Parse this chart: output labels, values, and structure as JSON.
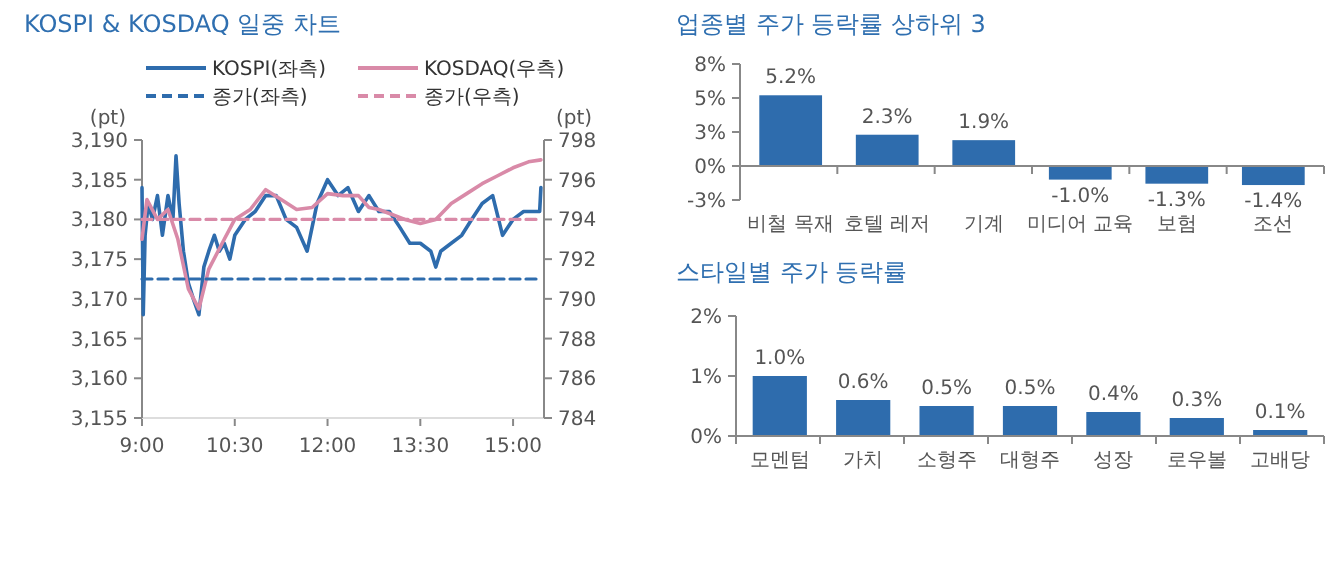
{
  "chart_data": [
    {
      "type": "line",
      "title": "KOSPI & KOSDAQ 일중 차트",
      "ylabel": "(pt)",
      "y2label": "(pt)",
      "legend": "top",
      "xlim": [
        9,
        15.5
      ],
      "xticks": [
        {
          "value": 9,
          "label": "9:00"
        },
        {
          "value": 10.5,
          "label": "10:30"
        },
        {
          "value": 12,
          "label": "12:00"
        },
        {
          "value": 13.5,
          "label": "13:30"
        },
        {
          "value": 15,
          "label": "15:00"
        }
      ],
      "ylim": [
        3155,
        3190
      ],
      "yticks": [
        {
          "value": 3155,
          "label": "3,155"
        },
        {
          "value": 3160,
          "label": "3,160"
        },
        {
          "value": 3165,
          "label": "3,165"
        },
        {
          "value": 3170,
          "label": "3,170"
        },
        {
          "value": 3175,
          "label": "3,175"
        },
        {
          "value": 3180,
          "label": "3,180"
        },
        {
          "value": 3185,
          "label": "3,185"
        },
        {
          "value": 3190,
          "label": "3,190"
        }
      ],
      "y2lim": [
        784,
        798
      ],
      "y2ticks": [
        784,
        786,
        788,
        790,
        792,
        794,
        796,
        798
      ],
      "series": [
        {
          "name": "KOSPI(좌측)",
          "color": "#2e6cad",
          "line_style": "solid",
          "x": [
            9,
            9.02,
            9.05,
            9.1,
            9.17,
            9.25,
            9.33,
            9.42,
            9.5,
            9.55,
            9.6,
            9.67,
            9.75,
            9.83,
            9.92,
            10,
            10.08,
            10.17,
            10.25,
            10.33,
            10.42,
            10.5,
            10.67,
            10.83,
            11,
            11.17,
            11.33,
            11.5,
            11.67,
            11.83,
            12,
            12.17,
            12.33,
            12.5,
            12.67,
            12.83,
            13,
            13.17,
            13.33,
            13.5,
            13.67,
            13.75,
            13.83,
            14,
            14.17,
            14.33,
            14.5,
            14.67,
            14.83,
            15,
            15.17,
            15.33,
            15.43,
            15.45
          ],
          "values": [
            3184,
            3168,
            3178,
            3182,
            3180,
            3183,
            3178,
            3183,
            3180,
            3188,
            3182,
            3176,
            3172,
            3170,
            3168,
            3174,
            3176,
            3178,
            3176,
            3177,
            3175,
            3178,
            3180,
            3181,
            3183,
            3183,
            3180,
            3179,
            3176,
            3182,
            3185,
            3183,
            3184,
            3181,
            3183,
            3181,
            3181,
            3179,
            3177,
            3177,
            3176,
            3174,
            3176,
            3177,
            3178,
            3180,
            3182,
            3183,
            3178,
            3180,
            3181,
            3181,
            3181,
            3184
          ]
        },
        {
          "name": "KOSDAQ(우측)",
          "color": "#d98aa8",
          "line_style": "solid",
          "axis": "y2",
          "x": [
            9,
            9.08,
            9.25,
            9.42,
            9.58,
            9.75,
            9.92,
            10.08,
            10.33,
            10.5,
            10.75,
            11,
            11.25,
            11.5,
            11.75,
            12,
            12.25,
            12.5,
            12.67,
            12.83,
            13,
            13.25,
            13.5,
            13.75,
            14,
            14.25,
            14.5,
            14.75,
            15,
            15.25,
            15.45
          ],
          "values": [
            793,
            795,
            794,
            794.5,
            793,
            790.5,
            789.5,
            791.5,
            793,
            794,
            794.5,
            795.5,
            795,
            794.5,
            794.6,
            795.3,
            795.2,
            795.2,
            794.6,
            794.5,
            794.3,
            794,
            793.8,
            794,
            794.8,
            795.3,
            795.8,
            796.2,
            796.6,
            796.9,
            797
          ]
        },
        {
          "name": "종가(좌측)",
          "color": "#2e6cad",
          "line_style": "dashed",
          "x": [
            9,
            15.45
          ],
          "values": [
            3172.5,
            3172.5
          ]
        },
        {
          "name": "종가(우측)",
          "color": "#d98aa8",
          "line_style": "dashed",
          "axis": "y2",
          "x": [
            9,
            15.45
          ],
          "values": [
            794,
            794
          ]
        }
      ]
    },
    {
      "type": "bar",
      "title": "업종별 주가 등락률 상하위 3",
      "categories": [
        "비철 목재",
        "호텔 레저",
        "기계",
        "미디어 교육",
        "보험",
        "조선"
      ],
      "values": [
        5.2,
        2.3,
        1.9,
        -1.0,
        -1.3,
        -1.4
      ],
      "value_labels": [
        "5.2%",
        "2.3%",
        "1.9%",
        "-1.0%",
        "-1.3%",
        "-1.4%"
      ],
      "color": "#2e6cad",
      "ylim": [
        -2.5,
        7.5
      ],
      "yticks": [
        {
          "value": -2.5,
          "label": "-3%"
        },
        {
          "value": 0,
          "label": "0%"
        },
        {
          "value": 2.5,
          "label": "3%"
        },
        {
          "value": 5,
          "label": "5%"
        },
        {
          "value": 7.5,
          "label": "8%"
        }
      ]
    },
    {
      "type": "bar",
      "title": "스타일별 주가 등락률",
      "categories": [
        "모멘텀",
        "가치",
        "소형주",
        "대형주",
        "성장",
        "로우볼",
        "고배당"
      ],
      "values": [
        1.0,
        0.6,
        0.5,
        0.5,
        0.4,
        0.3,
        0.1
      ],
      "value_labels": [
        "1.0%",
        "0.6%",
        "0.5%",
        "0.5%",
        "0.4%",
        "0.3%",
        "0.1%"
      ],
      "color": "#2e6cad",
      "ylim": [
        0,
        2
      ],
      "yticks": [
        {
          "value": 0,
          "label": "0%"
        },
        {
          "value": 1,
          "label": "1%"
        },
        {
          "value": 2,
          "label": "2%"
        }
      ]
    }
  ]
}
